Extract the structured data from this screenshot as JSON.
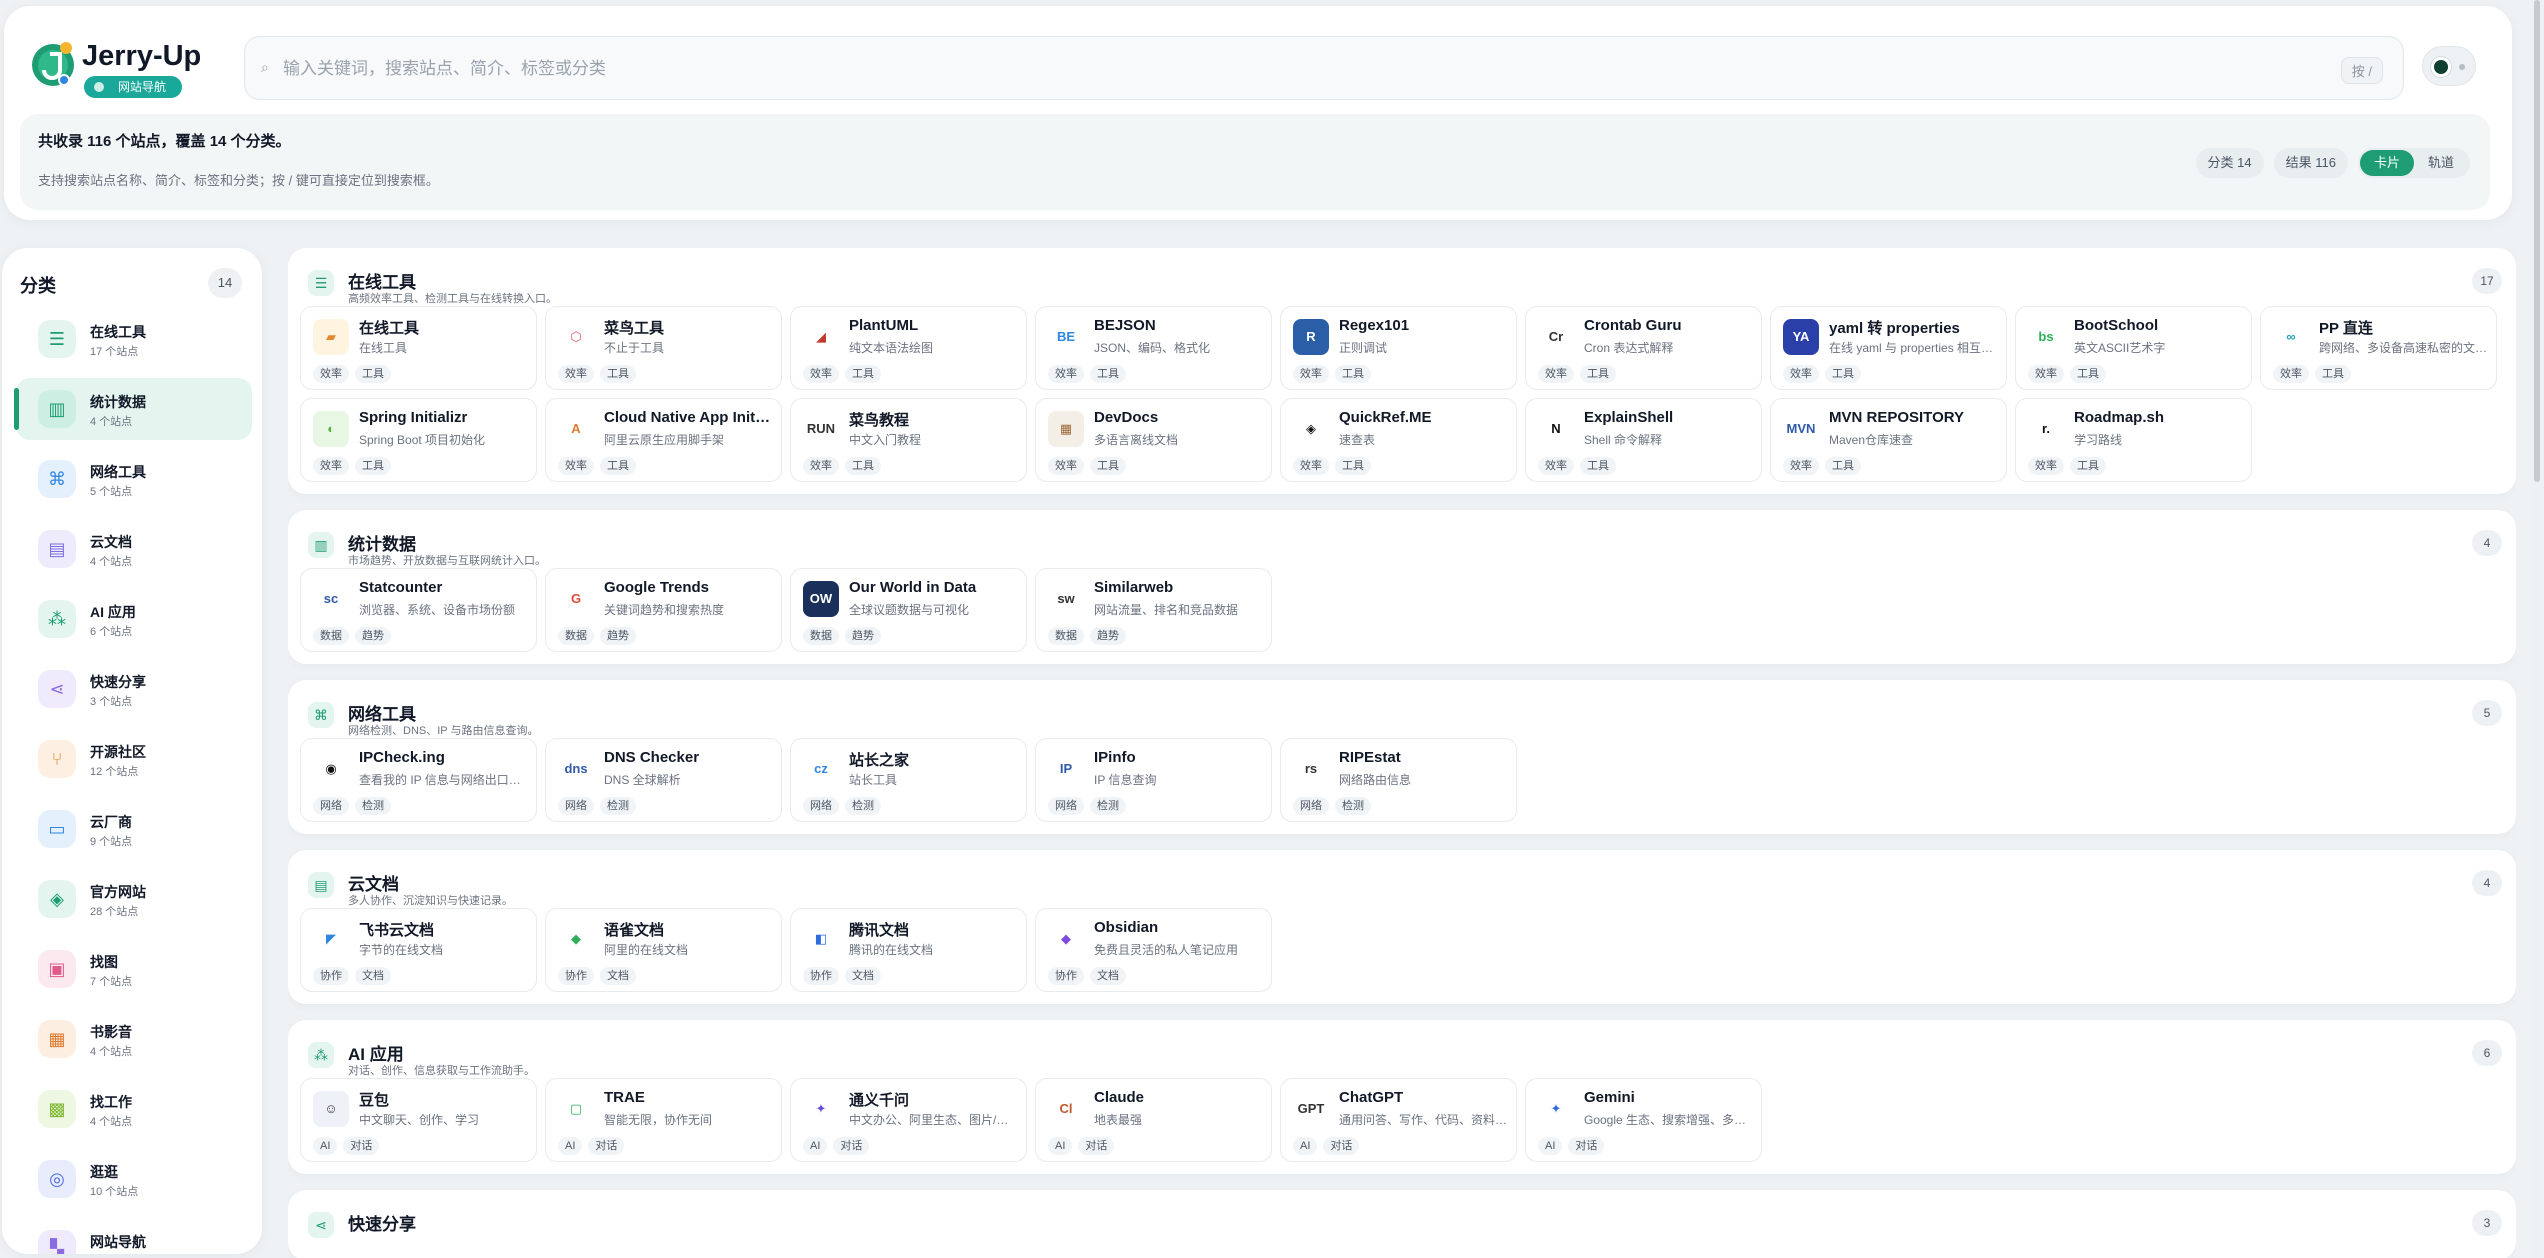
{
  "header": {
    "brand": "Jerry-Up",
    "badge": "网站导航",
    "search_placeholder": "输入关键词，搜索站点、简介、标签或分类",
    "shortcut": "按 /"
  },
  "info": {
    "summary": "共收录 116 个站点，覆盖 14 个分类。",
    "hint": "支持搜索站点名称、简介、标签和分类；按 / 键可直接定位到搜索框。",
    "categories_chip": "分类 14",
    "results_chip": "结果 116",
    "view_card": "卡片",
    "view_track": "轨道"
  },
  "sidebar": {
    "title": "分类",
    "count": "14",
    "items": [
      {
        "name": "在线工具",
        "sub": "17 个站点",
        "icon": "sliders-icon",
        "glyph": "☰",
        "color": "#1e9d74",
        "bg": "#e3f5ee"
      },
      {
        "name": "统计数据",
        "sub": "4 个站点",
        "icon": "bar-chart-icon",
        "glyph": "▥",
        "color": "#1e9d74",
        "bg": "#cdeee2"
      },
      {
        "name": "网络工具",
        "sub": "5 个站点",
        "icon": "network-icon",
        "glyph": "⌘",
        "color": "#2f86e0",
        "bg": "#e4f0fc"
      },
      {
        "name": "云文档",
        "sub": "4 个站点",
        "icon": "document-icon",
        "glyph": "▤",
        "color": "#7c6ce0",
        "bg": "#eeebfc"
      },
      {
        "name": "AI 应用",
        "sub": "6 个站点",
        "icon": "ai-icon",
        "glyph": "⁂",
        "color": "#1e9d74",
        "bg": "#e3f5ee"
      },
      {
        "name": "快速分享",
        "sub": "3 个站点",
        "icon": "share-icon",
        "glyph": "⋖",
        "color": "#8b6ce0",
        "bg": "#efeafc"
      },
      {
        "name": "开源社区",
        "sub": "12 个站点",
        "icon": "git-branch-icon",
        "glyph": "⑂",
        "color": "#e08a2f",
        "bg": "#fdf0e2"
      },
      {
        "name": "云厂商",
        "sub": "9 个站点",
        "icon": "server-icon",
        "glyph": "▭",
        "color": "#2f86e0",
        "bg": "#e4f0fc"
      },
      {
        "name": "官方网站",
        "sub": "28 个站点",
        "icon": "shield-icon",
        "glyph": "◈",
        "color": "#1e9d74",
        "bg": "#e3f5ee"
      },
      {
        "name": "找图",
        "sub": "7 个站点",
        "icon": "image-icon",
        "glyph": "▣",
        "color": "#e05a8a",
        "bg": "#fce8ef"
      },
      {
        "name": "书影音",
        "sub": "4 个站点",
        "icon": "book-icon",
        "glyph": "▦",
        "color": "#e07a2f",
        "bg": "#fdeee2"
      },
      {
        "name": "找工作",
        "sub": "4 个站点",
        "icon": "briefcase-icon",
        "glyph": "▩",
        "color": "#7cb82f",
        "bg": "#eef7e2"
      },
      {
        "name": "逛逛",
        "sub": "10 个站点",
        "icon": "compass-icon",
        "glyph": "◎",
        "color": "#4f6ce0",
        "bg": "#e8ecfc"
      },
      {
        "name": "网站导航",
        "sub": "",
        "icon": "grid-icon",
        "glyph": "▚",
        "color": "#8b6ce0",
        "bg": "#efeafc"
      }
    ]
  },
  "sections": [
    {
      "title": "在线工具",
      "desc": "高频效率工具、检测工具与在线转换入口。",
      "count": "17",
      "icon": "sliders-icon",
      "glyph": "☰",
      "cards": [
        {
          "name": "在线工具",
          "desc": "在线工具",
          "tags": [
            "效率",
            "工具"
          ],
          "logo": "toolbox-logo",
          "glyph": "▰",
          "bg": "#fff4e0",
          "color": "#e08a2f"
        },
        {
          "name": "菜鸟工具",
          "desc": "不止于工具",
          "tags": [
            "效率",
            "工具"
          ],
          "logo": "cube-logo",
          "glyph": "⬡",
          "bg": "#ffffff",
          "color": "#e05a5a"
        },
        {
          "name": "PlantUML",
          "desc": "纯文本语法绘图",
          "tags": [
            "效率",
            "工具"
          ],
          "logo": "plantuml-logo",
          "glyph": "◢",
          "bg": "#ffffff",
          "color": "#c0392b"
        },
        {
          "name": "BEJSON",
          "desc": "JSON、编码、格式化",
          "tags": [
            "效率",
            "工具"
          ],
          "logo": "bejson-logo",
          "glyph": "BE",
          "bg": "#ffffff",
          "color": "#2f86e0"
        },
        {
          "name": "Regex101",
          "desc": "正则调试",
          "tags": [
            "效率",
            "工具"
          ],
          "logo": "regex-logo",
          "glyph": "R",
          "bg": "#2a5fa8",
          "color": "#ffffff"
        },
        {
          "name": "Crontab Guru",
          "desc": "Cron 表达式解释",
          "tags": [
            "效率",
            "工具"
          ],
          "logo": "crontab-logo",
          "glyph": "Cr",
          "bg": "#ffffff",
          "color": "#333333"
        },
        {
          "name": "yaml 转 properties",
          "desc": "在线 yaml 与 properties 相互转换",
          "tags": [
            "效率",
            "工具"
          ],
          "logo": "yaml-logo",
          "glyph": "YA",
          "bg": "#2a3fa8",
          "color": "#ffffff"
        },
        {
          "name": "BootSchool",
          "desc": "英文ASCII艺术字",
          "tags": [
            "效率",
            "工具"
          ],
          "logo": "bootschool-logo",
          "glyph": "bs",
          "bg": "#ffffff",
          "color": "#2fae5a"
        },
        {
          "name": "PP 直连",
          "desc": "跨网络、多设备高速私密的文件传输",
          "tags": [
            "效率",
            "工具"
          ],
          "logo": "pp-logo",
          "glyph": "∞",
          "bg": "#ffffff",
          "color": "#1ea0b8"
        },
        {
          "name": "Spring Initializr",
          "desc": "Spring Boot 项目初始化",
          "tags": [
            "效率",
            "工具"
          ],
          "logo": "spring-logo",
          "glyph": "◐",
          "bg": "#e8f6e4",
          "color": "#5aae3a"
        },
        {
          "name": "Cloud Native App Initializer",
          "desc": "阿里云原生应用脚手架",
          "tags": [
            "效率",
            "工具"
          ],
          "logo": "aliyun-logo",
          "glyph": "A",
          "bg": "#ffffff",
          "color": "#e07a2f"
        },
        {
          "name": "菜鸟教程",
          "desc": "中文入门教程",
          "tags": [
            "效率",
            "工具"
          ],
          "logo": "runoob-logo",
          "glyph": "RUN",
          "bg": "#ffffff",
          "color": "#333333"
        },
        {
          "name": "DevDocs",
          "desc": "多语言离线文档",
          "tags": [
            "效率",
            "工具"
          ],
          "logo": "devdocs-logo",
          "glyph": "▦",
          "bg": "#f4efe6",
          "color": "#a06a3a"
        },
        {
          "name": "QuickRef.ME",
          "desc": "速查表",
          "tags": [
            "效率",
            "工具"
          ],
          "logo": "quickref-logo",
          "glyph": "◈",
          "bg": "#ffffff",
          "color": "#111111"
        },
        {
          "name": "ExplainShell",
          "desc": "Shell 命令解释",
          "tags": [
            "效率",
            "工具"
          ],
          "logo": "explainshell-logo",
          "glyph": "N",
          "bg": "#ffffff",
          "color": "#111111"
        },
        {
          "name": "MVN REPOSITORY",
          "desc": "Maven仓库速查",
          "tags": [
            "效率",
            "工具"
          ],
          "logo": "mvn-logo",
          "glyph": "MVN",
          "bg": "#ffffff",
          "color": "#2f5aa8"
        },
        {
          "name": "Roadmap.sh",
          "desc": "学习路线",
          "tags": [
            "效率",
            "工具"
          ],
          "logo": "roadmap-logo",
          "glyph": "r.",
          "bg": "#ffffff",
          "color": "#111111"
        }
      ]
    },
    {
      "title": "统计数据",
      "desc": "市场趋势、开放数据与互联网统计入口。",
      "count": "4",
      "icon": "bar-chart-icon",
      "glyph": "▥",
      "cards": [
        {
          "name": "Statcounter",
          "desc": "浏览器、系统、设备市场份额",
          "tags": [
            "数据",
            "趋势"
          ],
          "logo": "statcounter-logo",
          "glyph": "sc",
          "bg": "#ffffff",
          "color": "#2f5aa8"
        },
        {
          "name": "Google Trends",
          "desc": "关键词趋势和搜索热度",
          "tags": [
            "数据",
            "趋势"
          ],
          "logo": "google-logo",
          "glyph": "G",
          "bg": "#ffffff",
          "color": "#e04a3a"
        },
        {
          "name": "Our World in Data",
          "desc": "全球议题数据与可视化",
          "tags": [
            "数据",
            "趋势"
          ],
          "logo": "owid-logo",
          "glyph": "OW",
          "bg": "#1a2f5a",
          "color": "#ffffff"
        },
        {
          "name": "Similarweb",
          "desc": "网站流量、排名和竞品数据",
          "tags": [
            "数据",
            "趋势"
          ],
          "logo": "similarweb-logo",
          "glyph": "sw",
          "bg": "#ffffff",
          "color": "#333333"
        }
      ]
    },
    {
      "title": "网络工具",
      "desc": "网络检测、DNS、IP 与路由信息查询。",
      "count": "5",
      "icon": "network-icon",
      "glyph": "⌘",
      "cards": [
        {
          "name": "IPCheck.ing",
          "desc": "查看我的 IP 信息与网络出口检测",
          "tags": [
            "网络",
            "检测"
          ],
          "logo": "ipcheck-logo",
          "glyph": "◉",
          "bg": "#ffffff",
          "color": "#111111"
        },
        {
          "name": "DNS Checker",
          "desc": "DNS 全球解析",
          "tags": [
            "网络",
            "检测"
          ],
          "logo": "dnschecker-logo",
          "glyph": "dns",
          "bg": "#ffffff",
          "color": "#2f5aa8"
        },
        {
          "name": "站长之家",
          "desc": "站长工具",
          "tags": [
            "网络",
            "检测"
          ],
          "logo": "chinaz-logo",
          "glyph": "cz",
          "bg": "#ffffff",
          "color": "#2f86e0"
        },
        {
          "name": "IPinfo",
          "desc": "IP 信息查询",
          "tags": [
            "网络",
            "检测"
          ],
          "logo": "ipinfo-logo",
          "glyph": "IP",
          "bg": "#ffffff",
          "color": "#2f5aa8"
        },
        {
          "name": "RIPEstat",
          "desc": "网络路由信息",
          "tags": [
            "网络",
            "检测"
          ],
          "logo": "ripestat-logo",
          "glyph": "rs",
          "bg": "#ffffff",
          "color": "#333333"
        }
      ]
    },
    {
      "title": "云文档",
      "desc": "多人协作、沉淀知识与快速记录。",
      "count": "4",
      "icon": "document-icon",
      "glyph": "▤",
      "cards": [
        {
          "name": "飞书云文档",
          "desc": "字节的在线文档",
          "tags": [
            "协作",
            "文档"
          ],
          "logo": "feishu-logo",
          "glyph": "◤",
          "bg": "#ffffff",
          "color": "#2f86e0"
        },
        {
          "name": "语雀文档",
          "desc": "阿里的在线文档",
          "tags": [
            "协作",
            "文档"
          ],
          "logo": "yuque-logo",
          "glyph": "◆",
          "bg": "#ffffff",
          "color": "#2fae5a"
        },
        {
          "name": "腾讯文档",
          "desc": "腾讯的在线文档",
          "tags": [
            "协作",
            "文档"
          ],
          "logo": "tencent-docs-logo",
          "glyph": "◧",
          "bg": "#ffffff",
          "color": "#2f6ce0"
        },
        {
          "name": "Obsidian",
          "desc": "免费且灵活的私人笔记应用",
          "tags": [
            "协作",
            "文档"
          ],
          "logo": "obsidian-logo",
          "glyph": "◆",
          "bg": "#ffffff",
          "color": "#7c4ce0"
        }
      ]
    },
    {
      "title": "AI 应用",
      "desc": "对话、创作、信息获取与工作流助手。",
      "count": "6",
      "icon": "ai-icon",
      "glyph": "⁂",
      "cards": [
        {
          "name": "豆包",
          "desc": "中文聊天、创作、学习",
          "tags": [
            "AI",
            "对话"
          ],
          "logo": "doubao-logo",
          "glyph": "☺",
          "bg": "#eef2f8",
          "color": "#333333"
        },
        {
          "name": "TRAE",
          "desc": "智能无限，协作无间",
          "tags": [
            "AI",
            "对话"
          ],
          "logo": "trae-logo",
          "glyph": "▢",
          "bg": "#ffffff",
          "color": "#2fae5a"
        },
        {
          "name": "通义千问",
          "desc": "中文办公、阿里生态、图片/文档处理",
          "tags": [
            "AI",
            "对话"
          ],
          "logo": "tongyi-logo",
          "glyph": "✦",
          "bg": "#ffffff",
          "color": "#6c4ce0"
        },
        {
          "name": "Claude",
          "desc": "地表最强",
          "tags": [
            "AI",
            "对话"
          ],
          "logo": "claude-logo",
          "glyph": "Cl",
          "bg": "#ffffff",
          "color": "#c0582f"
        },
        {
          "name": "ChatGPT",
          "desc": "通用问答、写作、代码、资料整理",
          "tags": [
            "AI",
            "对话"
          ],
          "logo": "chatgpt-logo",
          "glyph": "GPT",
          "bg": "#ffffff",
          "color": "#333333"
        },
        {
          "name": "Gemini",
          "desc": "Google 生态、搜索增强、多模态",
          "tags": [
            "AI",
            "对话"
          ],
          "logo": "gemini-logo",
          "glyph": "✦",
          "bg": "#ffffff",
          "color": "#2f6ce0"
        }
      ]
    },
    {
      "title": "快速分享",
      "desc": "",
      "count": "3",
      "icon": "share-icon",
      "glyph": "⋖",
      "cards": []
    }
  ]
}
